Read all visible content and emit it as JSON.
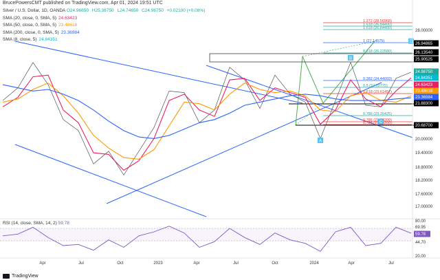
{
  "header": {
    "publisher_line": "BrucePowersCMT published on TradingView.com, Apr 01, 2024 19:51 UTC"
  },
  "symbol": {
    "title": "Silver / U.S. Dollar, 1D, OANDA",
    "o": "O24.96650",
    "h": "H25.38750",
    "l": "L24.74650",
    "c": "C24.98750",
    "chg": "+0.02100 (+0.08%)"
  },
  "indicators": [
    {
      "label": "SMA (20, close, 0, SMA, 5)",
      "value": "24.63423",
      "color": "#e91e63"
    },
    {
      "label": "SMA (50, close, 0, SMA, 5)",
      "value": "23.48618",
      "color": "#ff9800"
    },
    {
      "label": "SMA (200, close, 0, SMA, 5)",
      "value": "23.36984",
      "color": "#2962ff"
    },
    {
      "label": "SMA (8, close, 5)",
      "value": "24.84351",
      "color": "#00bcd4"
    }
  ],
  "rsi": {
    "label": "RSI (14, close, SMA, 14, 2)",
    "value": "59.78",
    "scale": [
      "80.00",
      "69.95",
      "59.78",
      "44.70",
      "20.00"
    ]
  },
  "price_scale": [
    "28.00000",
    "26.94865",
    "26.13540",
    "25.90525",
    "24.98750",
    "24.84351",
    "24.63423",
    "23.48618",
    "23.36984",
    "21.88300",
    "20.68700",
    "20.00000",
    "19.40000",
    "18.80000",
    "18.20000",
    "17.60000",
    "17.00000"
  ],
  "time_axis": [
    "Apr",
    "Jul",
    "Oct",
    "2023",
    "Apr",
    "Jul",
    "Oct",
    "2024",
    "Apr",
    "Jul"
  ],
  "fib_levels": [
    {
      "label": "1.272 (28.56968)",
      "color": "#e53935"
    },
    {
      "label": "1.618 (26.84400)",
      "color": "#26a69a"
    },
    {
      "label": "1.618 (26.84400)",
      "color": "#26a69a"
    },
    {
      "label": "1 (27.14575)",
      "color": "#2962ff"
    },
    {
      "label": "0.618 (26.22580)",
      "color": "#26a69a"
    },
    {
      "label": "0.382 (24.44093)",
      "color": "#2962ff"
    },
    {
      "label": "0.5 (24.02775)",
      "color": "#26a69a"
    },
    {
      "label": "0.618 (23.61457)",
      "color": "#e53935"
    },
    {
      "label": "0.786 (23.26425)",
      "color": "#26a69a"
    },
    {
      "label": "0.786 (21.88300)",
      "color": "#e53935"
    },
    {
      "label": "0.786 (21.88300)",
      "color": "#e53935"
    }
  ],
  "pattern_labels": [
    "A",
    "B",
    "C",
    "D",
    "B",
    "C",
    "0.786",
    "1.258"
  ],
  "chart_data": {
    "type": "line",
    "title": "Silver / U.S. Dollar, 1D, OANDA",
    "xlabel": "",
    "ylabel": "",
    "ylim": [
      16.0,
      28.5
    ],
    "x": [
      "2022-01",
      "2022-02",
      "2022-03",
      "2022-04",
      "2022-05",
      "2022-06",
      "2022-07",
      "2022-08",
      "2022-09",
      "2022-10",
      "2022-11",
      "2022-12",
      "2023-01",
      "2023-02",
      "2023-03",
      "2023-04",
      "2023-05",
      "2023-06",
      "2023-07",
      "2023-08",
      "2023-09",
      "2023-10",
      "2023-11",
      "2023-12",
      "2024-01",
      "2024-02",
      "2024-03",
      "2024-04"
    ],
    "series": [
      {
        "name": "Silver / U.S. Dollar",
        "values": [
          23.2,
          24.0,
          25.6,
          24.2,
          22.0,
          21.3,
          19.2,
          20.0,
          18.5,
          20.0,
          21.5,
          23.8,
          23.7,
          21.8,
          22.6,
          25.3,
          24.5,
          22.7,
          24.8,
          23.6,
          23.1,
          20.8,
          23.2,
          25.6,
          22.9,
          22.8,
          24.6,
          24.99
        ]
      },
      {
        "name": "SMA 20",
        "values": [
          22.8,
          23.4,
          24.7,
          24.8,
          22.6,
          21.8,
          19.9,
          19.8,
          18.8,
          19.4,
          20.8,
          23.2,
          23.6,
          22.6,
          22.2,
          24.5,
          24.6,
          23.2,
          24.0,
          23.7,
          23.4,
          21.7,
          22.6,
          24.5,
          23.3,
          22.8,
          23.8,
          24.63
        ]
      },
      {
        "name": "SMA 50",
        "values": [
          23.1,
          23.3,
          23.9,
          24.3,
          23.5,
          22.4,
          21.0,
          20.2,
          19.6,
          19.5,
          20.1,
          21.6,
          23.1,
          23.0,
          22.6,
          23.6,
          24.3,
          23.9,
          23.7,
          23.8,
          23.5,
          22.6,
          22.5,
          23.5,
          23.7,
          23.2,
          23.1,
          23.49
        ]
      },
      {
        "name": "SMA 200",
        "values": [
          24.2,
          24.0,
          23.8,
          23.9,
          23.6,
          23.2,
          22.6,
          21.9,
          21.3,
          20.9,
          20.8,
          21.0,
          21.4,
          21.8,
          22.0,
          22.4,
          22.9,
          23.1,
          23.3,
          23.5,
          23.6,
          23.5,
          23.3,
          23.2,
          23.2,
          23.2,
          23.3,
          23.37
        ]
      }
    ],
    "rsi_values": [
      55,
      58,
      70,
      52,
      38,
      40,
      30,
      48,
      35,
      55,
      62,
      72,
      60,
      35,
      45,
      68,
      52,
      40,
      60,
      48,
      42,
      28,
      62,
      70,
      38,
      42,
      70,
      59.78
    ],
    "markers": [
      {
        "label": "A",
        "date": "2023-10",
        "price": 20.69
      },
      {
        "label": "B",
        "date": "2023-12",
        "price": 25.9
      },
      {
        "label": "C",
        "date": "2024-02",
        "price": 21.88
      },
      {
        "label": "D",
        "date": "2024-04",
        "price": 26.95
      }
    ],
    "grid": false,
    "legend": "top-left"
  }
}
